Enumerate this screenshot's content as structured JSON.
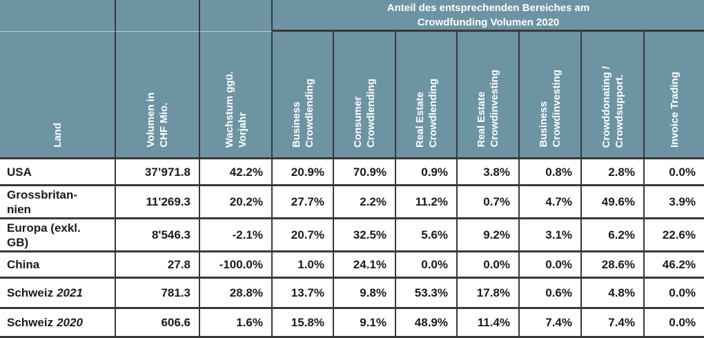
{
  "chart_data": {
    "type": "table",
    "title": "Anteil des entsprechenden Bereiches am\nCrowdfunding Volumen 2020",
    "title_spans_columns": "Business Crowdlending through Invoice Trading",
    "columns": [
      "Land",
      "Volumen in\nCHF Mio.",
      "Wachstum ggü.\nVorjahr",
      "Business\nCrowdlending",
      "Consumer\nCrowdlending",
      "Real Estate\nCrowdlending",
      "Real Estate\nCrowdinvesting",
      "Business\nCrowdinvesting",
      "Crowddonating /\nCrowdsupport.",
      "Invoice Trading"
    ],
    "rows": [
      {
        "land": "USA",
        "year": "",
        "values": [
          "37’971.8",
          "42.2%",
          "20.9%",
          "70.9%",
          "0.9%",
          "3.8%",
          "0.8%",
          "2.8%",
          "0.0%"
        ]
      },
      {
        "land": "Grossbritan-\nnien",
        "year": "",
        "values": [
          "11'269.3",
          "20.2%",
          "27.7%",
          "2.2%",
          "11.2%",
          "0.7%",
          "4.7%",
          "49.6%",
          "3.9%"
        ]
      },
      {
        "land": "Europa (exkl.\nGB)",
        "year": "",
        "values": [
          "8'546.3",
          "-2.1%",
          "20.7%",
          "32.5%",
          "5.6%",
          "9.2%",
          "3.1%",
          "6.2%",
          "22.6%"
        ]
      },
      {
        "land": "China",
        "year": "",
        "values": [
          "27.8",
          "-100.0%",
          "1.0%",
          "24.1%",
          "0.0%",
          "0.0%",
          "0.0%",
          "28.6%",
          "46.2%"
        ]
      },
      {
        "land": "Schweiz",
        "year": "2021",
        "values": [
          "781.3",
          "28.8%",
          "13.7%",
          "9.8%",
          "53.3%",
          "17.8%",
          "0.6%",
          "4.8%",
          "0.0%"
        ]
      },
      {
        "land": "Schweiz",
        "year": "2020",
        "values": [
          "606.6",
          "1.6%",
          "15.8%",
          "9.1%",
          "48.9%",
          "11.4%",
          "7.4%",
          "7.4%",
          "0.0%"
        ]
      }
    ]
  },
  "colors": {
    "header_bg": "#6D94A3",
    "border": "#383838",
    "header_text": "#FFFFFF",
    "body_text": "#1A1A1A",
    "body_bg": "#FFFFFF"
  }
}
